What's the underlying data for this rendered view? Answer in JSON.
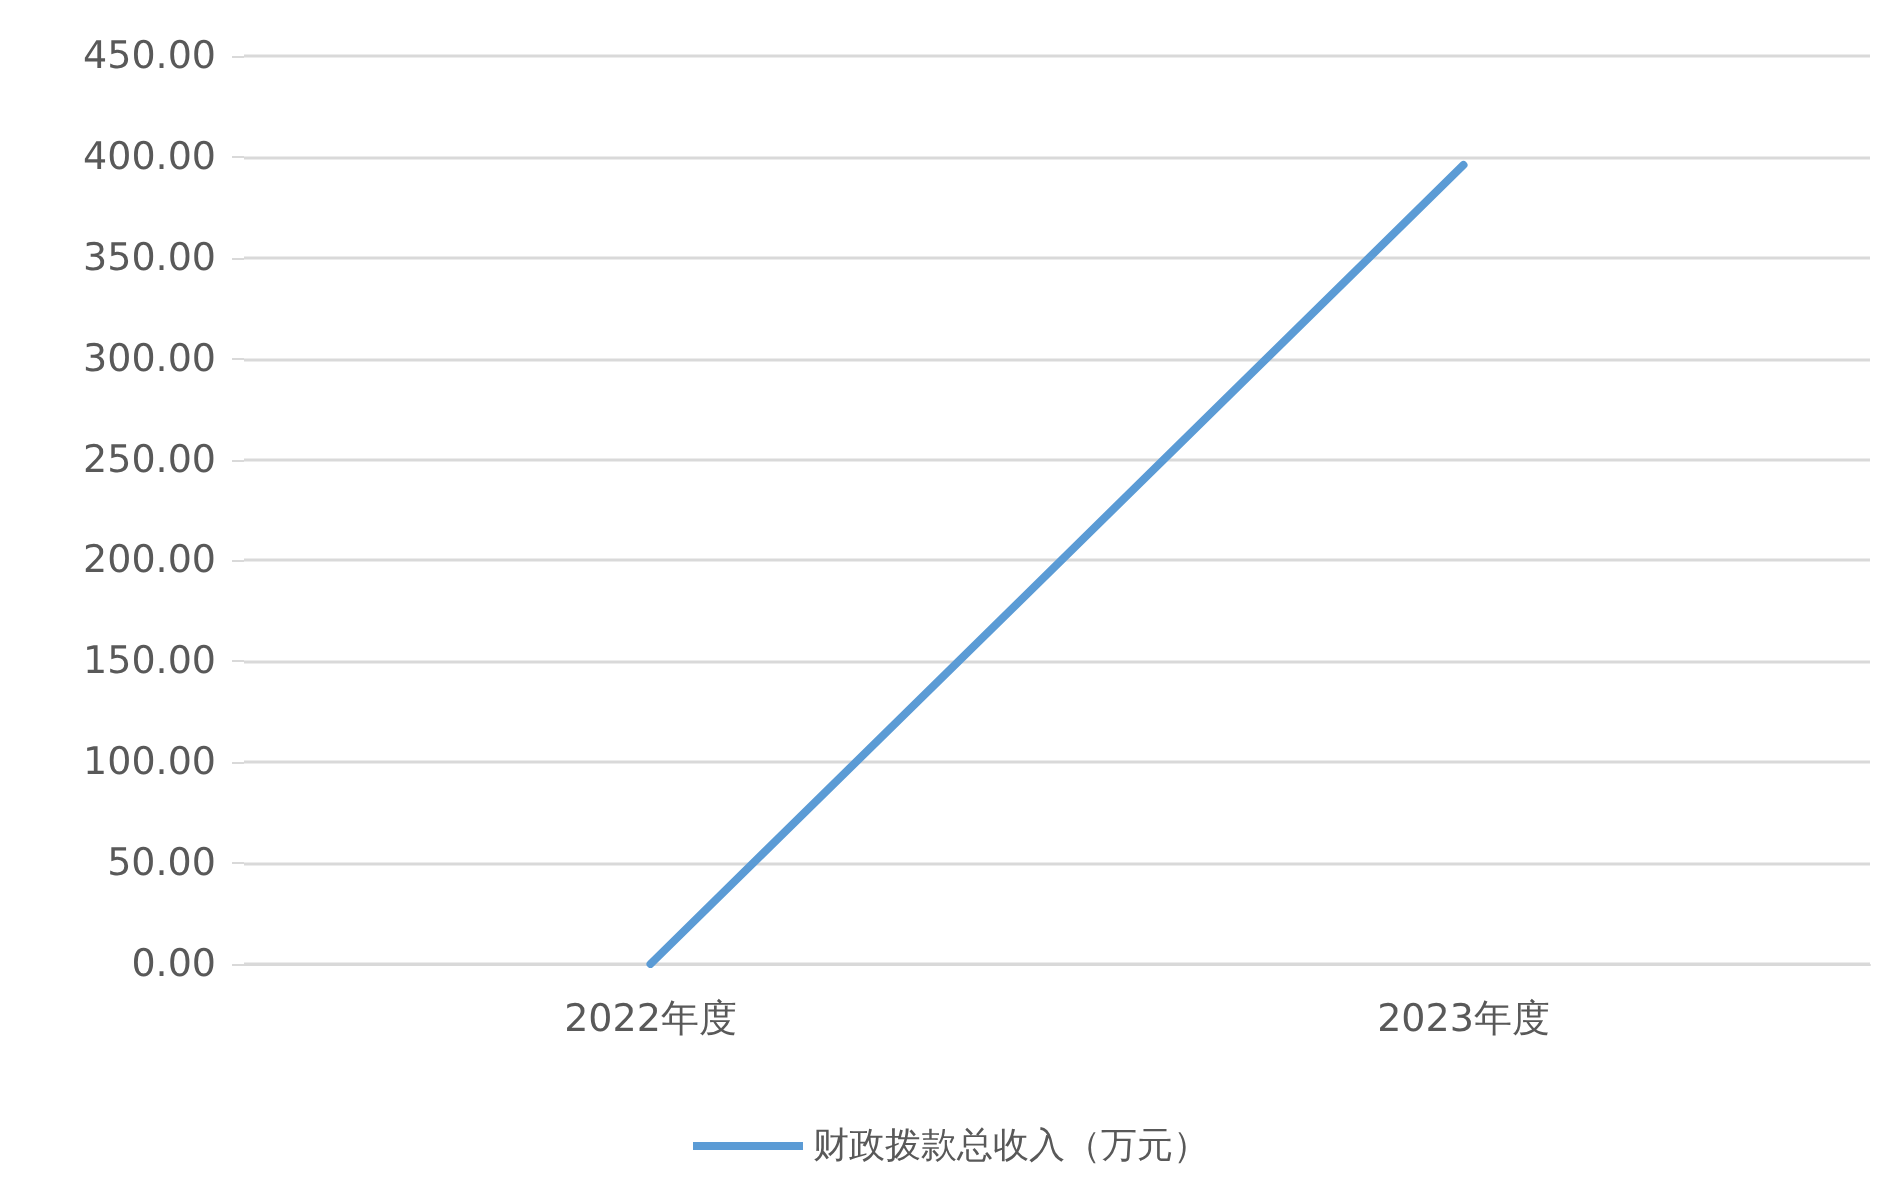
{
  "chart_data": {
    "type": "line",
    "categories": [
      "2022年度",
      "2023年度"
    ],
    "series": [
      {
        "name": "财政拨款总收入（万元）",
        "color": "#5b9bd5",
        "values": [
          0,
          396
        ]
      }
    ],
    "ylim": [
      0,
      450
    ],
    "yticks": [
      {
        "value": 0,
        "label": "0.00"
      },
      {
        "value": 50,
        "label": "50.00"
      },
      {
        "value": 100,
        "label": "100.00"
      },
      {
        "value": 150,
        "label": "150.00"
      },
      {
        "value": 200,
        "label": "200.00"
      },
      {
        "value": 250,
        "label": "250.00"
      },
      {
        "value": 300,
        "label": "300.00"
      },
      {
        "value": 350,
        "label": "350.00"
      },
      {
        "value": 400,
        "label": "400.00"
      },
      {
        "value": 450,
        "label": "450.00"
      }
    ],
    "grid": "y",
    "legend": "bottom",
    "marker": "none",
    "line_style": "solid"
  }
}
